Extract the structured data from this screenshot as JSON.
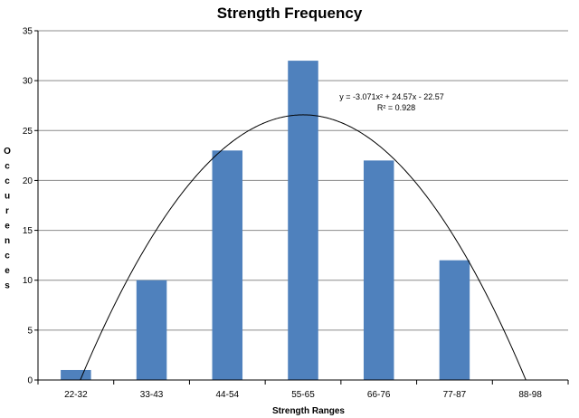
{
  "chart_data": {
    "type": "bar",
    "title": "Strength Frequency",
    "xlabel": "Strength Ranges",
    "ylabel": "Occurences",
    "categories": [
      "22-32",
      "33-43",
      "44-54",
      "55-65",
      "66-76",
      "77-87",
      "88-98"
    ],
    "values": [
      1,
      10,
      23,
      32,
      22,
      12,
      0
    ],
    "ylim": [
      0,
      35
    ],
    "yticks": [
      0,
      5,
      10,
      15,
      20,
      25,
      30,
      35
    ],
    "grid": true,
    "legend": "none",
    "bar_color": "#4F81BD",
    "trendline": {
      "type": "polynomial",
      "coefficients": {
        "a": -3.071,
        "b": 24.57,
        "c": -22.57
      },
      "equation": "y = -3.071x² + 24.57x - 22.57",
      "r_squared": "R² = 0.928"
    }
  }
}
